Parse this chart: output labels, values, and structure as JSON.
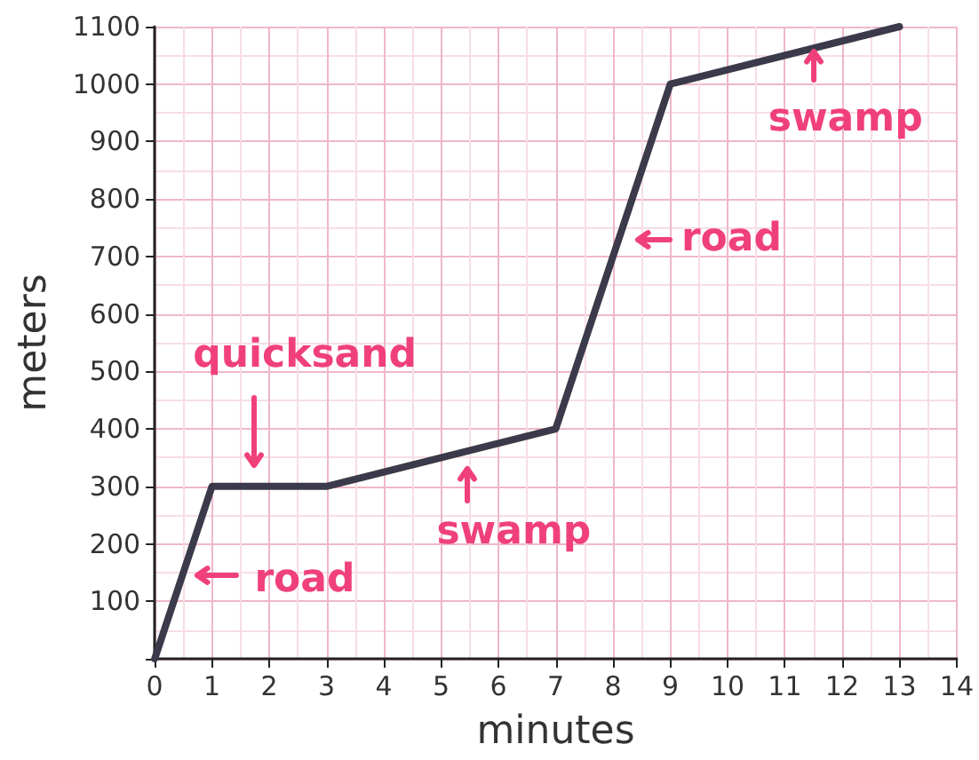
{
  "chart_data": {
    "type": "line",
    "xlabel": "minutes",
    "ylabel": "meters",
    "x": [
      0,
      1,
      3,
      7,
      9,
      13
    ],
    "series": [
      {
        "color": "#3a3a4a",
        "values": [
          0,
          300,
          300,
          400,
          1000,
          1100
        ]
      }
    ],
    "xlim": [
      0,
      14
    ],
    "xticks": [
      0,
      1,
      2,
      3,
      4,
      5,
      6,
      7,
      8,
      9,
      10,
      11,
      12,
      13,
      14
    ],
    "ylim": [
      0,
      1100
    ],
    "yticks": [
      {
        "value": 0,
        "label": null
      },
      100,
      200,
      300,
      400,
      500,
      600,
      700,
      800,
      900,
      1000,
      1100
    ],
    "grid": true,
    "marker": "none",
    "line_style": "solid",
    "annotations": [
      {
        "text": "quicksand",
        "x": 2,
        "y": 300
      },
      {
        "text": "road",
        "x": 0.5,
        "y": 150
      },
      {
        "text": "swamp",
        "x": 5.4,
        "y": 350
      },
      {
        "text": "road",
        "x": 8.2,
        "y": 730
      },
      {
        "text": "swamp",
        "x": 11.5,
        "y": 1075
      }
    ]
  }
}
